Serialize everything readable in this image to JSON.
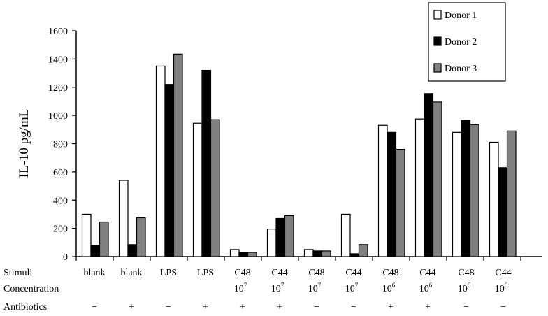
{
  "chart_data": {
    "type": "bar",
    "ylabel": "IL-10 pg/mL",
    "ylim": [
      0,
      1600
    ],
    "yticks": [
      0,
      200,
      400,
      600,
      800,
      1000,
      1200,
      1400,
      1600
    ],
    "legend_placement": "top-right",
    "row_labels": {
      "stimuli": "Stimuli",
      "concentration": "Concentration",
      "antibiotics": "Antibiotics"
    },
    "groups": [
      {
        "stimuli": "blank",
        "concentration": "",
        "antibiotics": "−"
      },
      {
        "stimuli": "blank",
        "concentration": "",
        "antibiotics": "+"
      },
      {
        "stimuli": "LPS",
        "concentration": "",
        "antibiotics": "−"
      },
      {
        "stimuli": "LPS",
        "concentration": "",
        "antibiotics": "+"
      },
      {
        "stimuli": "C48",
        "concentration": "10",
        "exponent": "7",
        "antibiotics": "+"
      },
      {
        "stimuli": "C44",
        "concentration": "10",
        "exponent": "7",
        "antibiotics": "+"
      },
      {
        "stimuli": "C48",
        "concentration": "10",
        "exponent": "7",
        "antibiotics": "−"
      },
      {
        "stimuli": "C44",
        "concentration": "10",
        "exponent": "7",
        "antibiotics": "−"
      },
      {
        "stimuli": "C48",
        "concentration": "10",
        "exponent": "6",
        "antibiotics": "+"
      },
      {
        "stimuli": "C44",
        "concentration": "10",
        "exponent": "6",
        "antibiotics": "+"
      },
      {
        "stimuli": "C48",
        "concentration": "10",
        "exponent": "6",
        "antibiotics": "−"
      },
      {
        "stimuli": "C44",
        "concentration": "10",
        "exponent": "6",
        "antibiotics": "−"
      }
    ],
    "series": [
      {
        "name": "Donor 1",
        "color": "#ffffff",
        "values": [
          300,
          540,
          1350,
          945,
          50,
          195,
          50,
          300,
          930,
          975,
          880,
          810
        ]
      },
      {
        "name": "Donor 2",
        "color": "#000000",
        "values": [
          80,
          85,
          1220,
          1320,
          30,
          270,
          40,
          20,
          880,
          1155,
          965,
          630
        ]
      },
      {
        "name": "Donor 3",
        "color": "#808080",
        "values": [
          245,
          275,
          1435,
          970,
          30,
          290,
          40,
          85,
          760,
          1095,
          935,
          890
        ]
      }
    ]
  }
}
